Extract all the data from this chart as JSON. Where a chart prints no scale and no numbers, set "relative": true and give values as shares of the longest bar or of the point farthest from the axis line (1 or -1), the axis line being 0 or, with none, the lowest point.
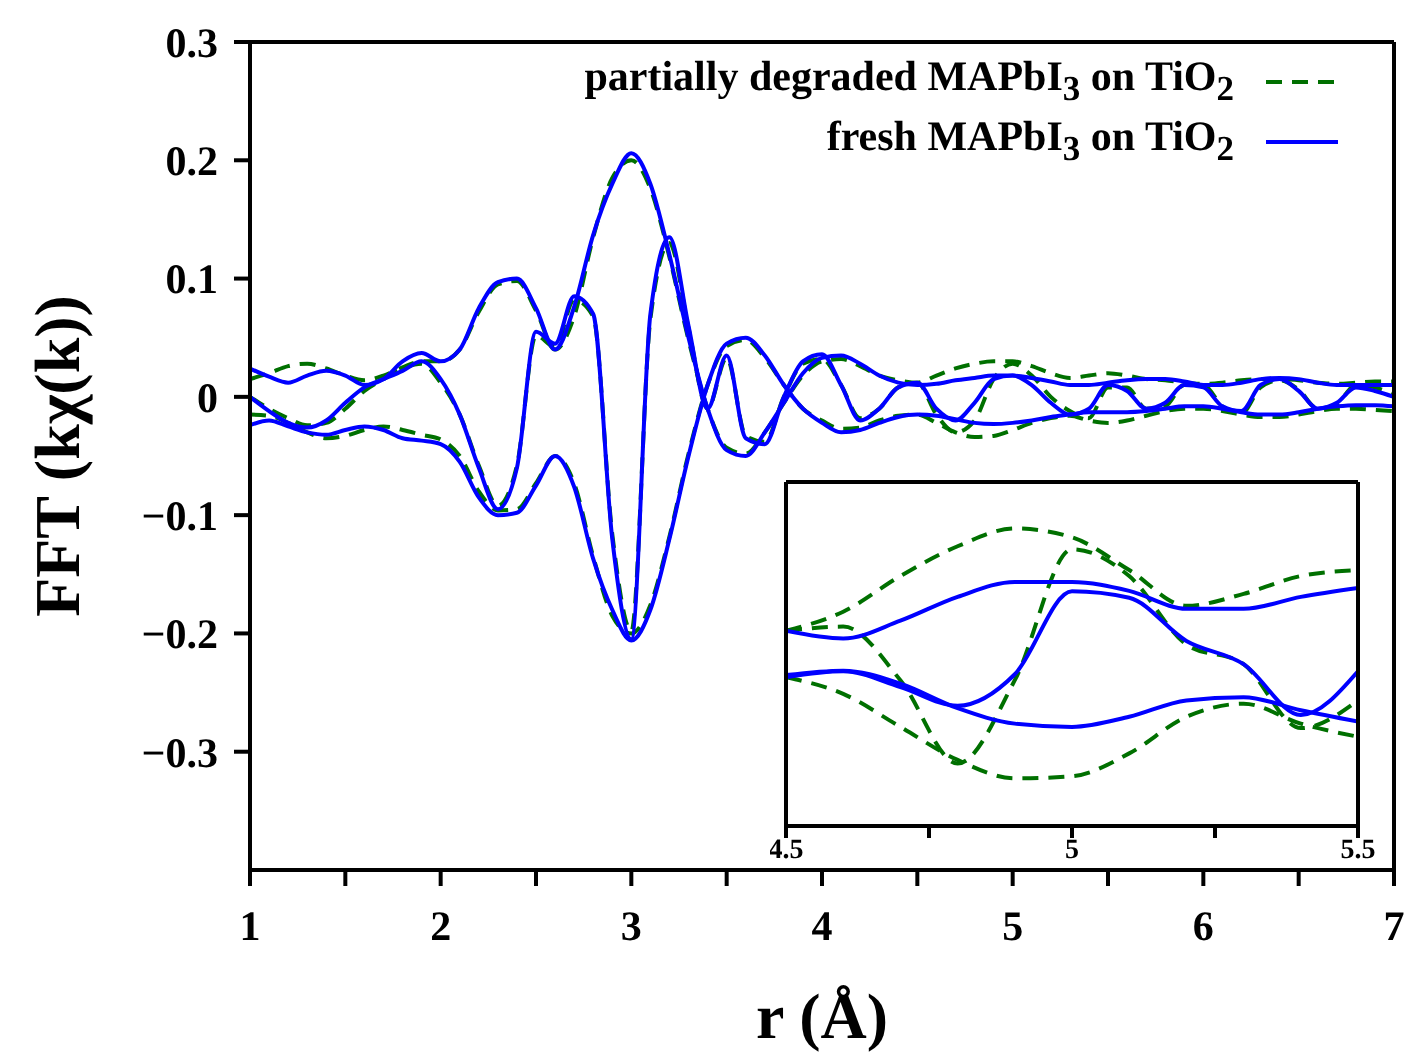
{
  "chart_data": [
    {
      "type": "line",
      "xlabel": "r (Å)",
      "ylabel": "FFT (kχ(k))",
      "xlim": [
        1,
        7
      ],
      "ylim": [
        -0.4,
        0.3
      ],
      "xticks": [
        1,
        {
          "value": 1.5,
          "label": null
        },
        2,
        {
          "value": 2.5,
          "label": null
        },
        3,
        {
          "value": 3.5,
          "label": null
        },
        4,
        {
          "value": 4.5,
          "label": null
        },
        5,
        {
          "value": 5.5,
          "label": null
        },
        6,
        {
          "value": 6.5,
          "label": null
        },
        7
      ],
      "yticks": [
        -0.3,
        -0.2,
        -0.1,
        0,
        0.1,
        0.2,
        0.3
      ],
      "grid": false,
      "legend": "top right",
      "x": [
        1.0,
        1.1,
        1.2,
        1.3,
        1.4,
        1.5,
        1.6,
        1.7,
        1.8,
        1.9,
        2.0,
        2.1,
        2.2,
        2.3,
        2.4,
        2.5,
        2.6,
        2.7,
        2.8,
        2.9,
        3.0,
        3.1,
        3.2,
        3.3,
        3.4,
        3.5,
        3.6,
        3.7,
        3.8,
        3.9,
        4.0,
        4.1,
        4.2,
        4.3,
        4.4,
        4.5,
        4.6,
        4.7,
        4.8,
        4.9,
        5.0,
        5.1,
        5.2,
        5.3,
        5.4,
        5.5,
        5.6,
        5.7,
        5.8,
        5.9,
        6.0,
        6.1,
        6.2,
        6.3,
        6.4,
        6.5,
        6.6,
        6.7,
        6.8,
        6.9,
        7.0
      ],
      "series": [
        {
          "name": "partially degraded MAPbI$_{3}$ on TiO$_{2}$",
          "color": "#007000",
          "line_style": "dashed",
          "values": [
            0.015,
            0.02,
            0.026,
            0.028,
            0.024,
            0.018,
            0.014,
            0.018,
            0.025,
            0.03,
            0.03,
            0.04,
            0.072,
            0.095,
            0.098,
            0.073,
            0.04,
            0.068,
            0.135,
            0.185,
            0.2,
            0.176,
            0.118,
            0.048,
            -0.01,
            -0.043,
            -0.048,
            -0.03,
            -0.005,
            0.018,
            0.03,
            0.032,
            0.026,
            0.018,
            0.014,
            0.012,
            0.018,
            0.024,
            0.028,
            0.03,
            0.03,
            0.026,
            0.02,
            0.016,
            0.018,
            0.02,
            0.018,
            0.015,
            0.014,
            0.012,
            0.011,
            0.012,
            0.014,
            0.015,
            0.015,
            0.014,
            0.012,
            0.011,
            0.012,
            0.013,
            0.013
          ]
        },
        {
          "color": "#007000",
          "line_style": "dashed",
          "values": [
            -0.015,
            -0.016,
            -0.022,
            -0.03,
            -0.035,
            -0.033,
            -0.028,
            -0.025,
            -0.028,
            -0.032,
            -0.036,
            -0.05,
            -0.08,
            -0.096,
            -0.095,
            -0.073,
            -0.05,
            -0.073,
            -0.135,
            -0.185,
            -0.2,
            -0.176,
            -0.118,
            -0.048,
            0.01,
            0.043,
            0.048,
            0.033,
            0.01,
            -0.01,
            -0.02,
            -0.027,
            -0.026,
            -0.02,
            -0.016,
            -0.015,
            -0.022,
            -0.03,
            -0.034,
            -0.033,
            -0.028,
            -0.022,
            -0.018,
            -0.016,
            -0.02,
            -0.022,
            -0.02,
            -0.016,
            -0.012,
            -0.01,
            -0.01,
            -0.012,
            -0.015,
            -0.017,
            -0.017,
            -0.015,
            -0.012,
            -0.01,
            -0.01,
            -0.011,
            -0.012
          ]
        },
        {
          "color": "#007000",
          "line_style": "dashed",
          "values": [
            0.0,
            -0.01,
            -0.018,
            -0.024,
            -0.022,
            -0.01,
            0.005,
            0.015,
            0.024,
            0.028,
            0.012,
            -0.015,
            -0.058,
            -0.092,
            -0.058,
            0.052,
            0.042,
            0.082,
            0.068,
            -0.116,
            -0.198,
            0.066,
            0.13,
            0.058,
            -0.01,
            0.033,
            -0.033,
            -0.038,
            0.0,
            0.028,
            0.032,
            0.01,
            -0.018,
            -0.01,
            0.008,
            0.012,
            -0.015,
            -0.03,
            -0.02,
            0.015,
            0.028,
            0.018,
            0.0,
            -0.012,
            -0.018,
            0.008,
            0.008,
            -0.01,
            -0.008,
            0.01,
            0.01,
            -0.008,
            -0.014,
            0.008,
            0.014,
            0.006,
            -0.01,
            -0.006,
            0.01,
            0.008,
            0.002
          ]
        },
        {
          "name": "fresh MAPbI$_{3}$ on TiO$_{2}$",
          "color": "#0000ff",
          "line_style": "solid",
          "values": [
            0.024,
            0.017,
            0.012,
            0.018,
            0.022,
            0.018,
            0.01,
            0.015,
            0.03,
            0.037,
            0.03,
            0.04,
            0.075,
            0.097,
            0.1,
            0.075,
            0.04,
            0.076,
            0.137,
            0.18,
            0.206,
            0.18,
            0.12,
            0.05,
            -0.01,
            -0.045,
            -0.05,
            -0.03,
            -0.005,
            0.02,
            0.033,
            0.035,
            0.028,
            0.018,
            0.012,
            0.01,
            0.011,
            0.014,
            0.016,
            0.018,
            0.018,
            0.016,
            0.013,
            0.01,
            0.01,
            0.012,
            0.014,
            0.015,
            0.015,
            0.013,
            0.01,
            0.01,
            0.012,
            0.015,
            0.016,
            0.015,
            0.012,
            0.01,
            0.01,
            0.01,
            0.01
          ]
        },
        {
          "color": "#0000ff",
          "line_style": "solid",
          "values": [
            -0.024,
            -0.02,
            -0.025,
            -0.03,
            -0.032,
            -0.028,
            -0.025,
            -0.028,
            -0.035,
            -0.037,
            -0.04,
            -0.055,
            -0.085,
            -0.1,
            -0.098,
            -0.075,
            -0.05,
            -0.076,
            -0.137,
            -0.18,
            -0.206,
            -0.18,
            -0.12,
            -0.05,
            0.01,
            0.045,
            0.05,
            0.035,
            0.01,
            -0.01,
            -0.022,
            -0.03,
            -0.028,
            -0.022,
            -0.017,
            -0.015,
            -0.016,
            -0.019,
            -0.022,
            -0.023,
            -0.022,
            -0.02,
            -0.017,
            -0.015,
            -0.013,
            -0.013,
            -0.013,
            -0.012,
            -0.01,
            -0.008,
            -0.008,
            -0.01,
            -0.013,
            -0.015,
            -0.015,
            -0.013,
            -0.01,
            -0.008,
            -0.007,
            -0.007,
            -0.008
          ]
        },
        {
          "color": "#0000ff",
          "line_style": "solid",
          "values": [
            0.0,
            -0.012,
            -0.022,
            -0.026,
            -0.02,
            -0.005,
            0.008,
            0.015,
            0.022,
            0.03,
            0.015,
            -0.015,
            -0.06,
            -0.095,
            -0.06,
            0.055,
            0.045,
            0.085,
            0.07,
            -0.12,
            -0.205,
            0.07,
            0.135,
            0.06,
            -0.01,
            0.035,
            -0.035,
            -0.04,
            0.0,
            0.03,
            0.036,
            0.01,
            -0.02,
            -0.01,
            0.008,
            0.012,
            -0.01,
            -0.02,
            -0.005,
            0.015,
            0.018,
            0.01,
            -0.005,
            -0.015,
            -0.01,
            0.01,
            0.005,
            -0.01,
            -0.005,
            0.01,
            0.008,
            -0.008,
            -0.012,
            0.01,
            0.015,
            0.005,
            -0.01,
            -0.005,
            0.008,
            0.005,
            0.0
          ]
        }
      ]
    },
    {
      "type": "line",
      "relative": true,
      "xlim": [
        4.5,
        5.5
      ],
      "xticks": [
        4.5,
        {
          "value": 4.75,
          "label": null
        },
        5,
        {
          "value": 5.25,
          "label": null
        },
        5.5
      ],
      "legend": false,
      "x": [
        4.5,
        4.6,
        4.7,
        4.8,
        4.9,
        5.0,
        5.1,
        5.2,
        5.3,
        5.4,
        5.5
      ],
      "series": [
        {
          "color": "#007000",
          "line_style": "dashed",
          "values": [
            0.656,
            0.72,
            0.84,
            0.94,
            1.0,
            0.97,
            0.86,
            0.74,
            0.78,
            0.84,
            0.86
          ]
        },
        {
          "color": "#007000",
          "line_style": "dashed",
          "values": [
            0.5,
            0.444,
            0.333,
            0.222,
            0.16,
            0.167,
            0.244,
            0.367,
            0.411,
            0.344,
            0.3
          ]
        },
        {
          "color": "#007000",
          "line_style": "dashed",
          "values": [
            0.656,
            0.67,
            0.49,
            0.21,
            0.49,
            0.93,
            0.84,
            0.61,
            0.544,
            0.329,
            0.422
          ]
        },
        {
          "color": "#0000ff",
          "line_style": "solid",
          "values": [
            0.656,
            0.63,
            0.69,
            0.77,
            0.82,
            0.82,
            0.79,
            0.73,
            0.73,
            0.77,
            0.8
          ]
        },
        {
          "color": "#0000ff",
          "line_style": "solid",
          "values": [
            0.507,
            0.522,
            0.478,
            0.396,
            0.344,
            0.333,
            0.367,
            0.422,
            0.433,
            0.389,
            0.351
          ]
        },
        {
          "color": "#0000ff",
          "line_style": "solid",
          "values": [
            0.5,
            0.52,
            0.467,
            0.404,
            0.51,
            0.789,
            0.767,
            0.622,
            0.544,
            0.373,
            0.52
          ]
        }
      ]
    }
  ]
}
